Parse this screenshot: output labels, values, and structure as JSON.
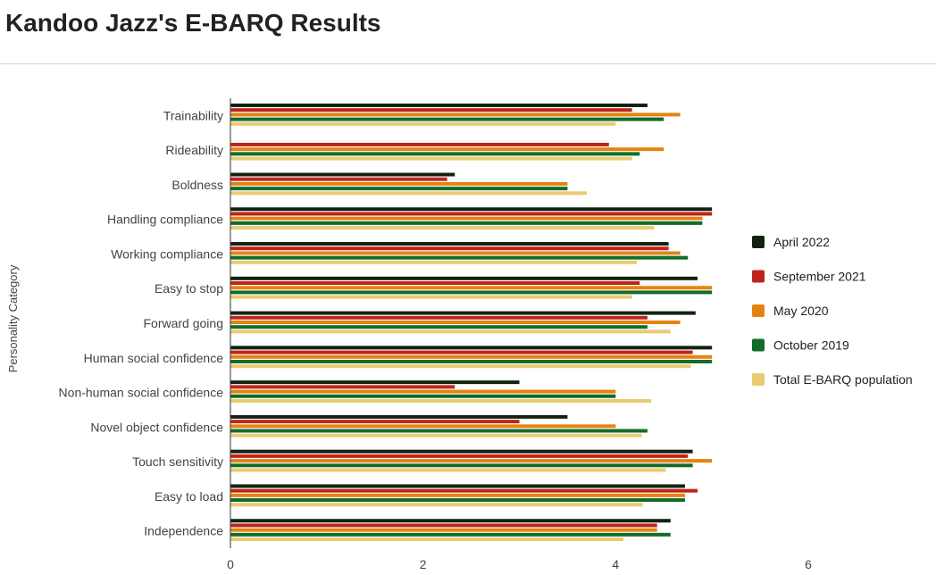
{
  "page": {
    "title": "Kandoo Jazz's E-BARQ Results"
  },
  "chart_data": {
    "type": "bar",
    "orientation": "horizontal",
    "title": "Kandoo Jazz's E-BARQ Results",
    "xlabel": "",
    "ylabel": "Personality Category",
    "xlim": [
      0,
      6
    ],
    "xticks": [
      0,
      2,
      4,
      6
    ],
    "grid": false,
    "legend_position": "right",
    "categories": [
      "Trainability",
      "Rideability",
      "Boldness",
      "Handling compliance",
      "Working compliance",
      "Easy to stop",
      "Forward going",
      "Human social confidence",
      "Non-human social confidence",
      "Novel object confidence",
      "Touch sensitivity",
      "Easy to load",
      "Independence"
    ],
    "series": [
      {
        "name": "April 2022",
        "color": "#112211",
        "values": [
          4.33,
          null,
          2.33,
          5.0,
          4.55,
          4.85,
          4.83,
          5.0,
          3.0,
          3.5,
          4.8,
          4.72,
          4.57
        ]
      },
      {
        "name": "September 2021",
        "color": "#c0231b",
        "values": [
          4.17,
          3.93,
          2.25,
          5.0,
          4.55,
          4.25,
          4.33,
          4.8,
          2.33,
          3.0,
          4.75,
          4.85,
          4.43
        ]
      },
      {
        "name": "May 2020",
        "color": "#e6830f",
        "values": [
          4.67,
          4.5,
          3.5,
          4.9,
          4.67,
          5.0,
          4.67,
          5.0,
          4.0,
          4.0,
          5.0,
          4.72,
          4.43
        ]
      },
      {
        "name": "October 2019",
        "color": "#136b2b",
        "values": [
          4.5,
          4.25,
          3.5,
          4.9,
          4.75,
          5.0,
          4.33,
          5.0,
          4.0,
          4.33,
          4.8,
          4.72,
          4.57
        ]
      },
      {
        "name": "Total E-BARQ population",
        "color": "#e9cb70",
        "values": [
          4.0,
          4.17,
          3.7,
          4.4,
          4.22,
          4.17,
          4.57,
          4.78,
          4.37,
          4.27,
          4.52,
          4.28,
          4.08
        ]
      }
    ]
  }
}
